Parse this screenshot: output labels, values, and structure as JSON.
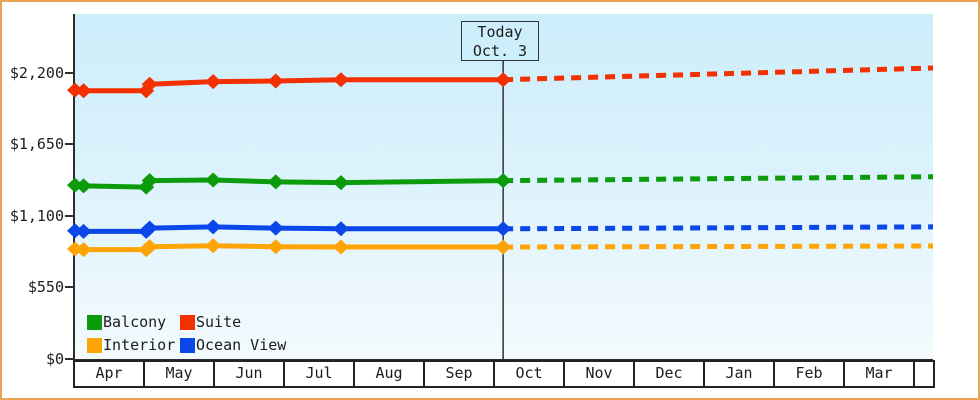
{
  "frame": {
    "border_color": "#e9a556"
  },
  "today_box": {
    "line1": "Today",
    "line2": "Oct. 3"
  },
  "chart_data": {
    "type": "line",
    "title": "",
    "x_axis": {
      "tick_labels": [
        "Apr",
        "May",
        "Jun",
        "Jul",
        "Aug",
        "Sep",
        "Oct",
        "Nov",
        "Dec",
        "Jan",
        "Feb",
        "Mar"
      ]
    },
    "y_axis": {
      "tick_labels": [
        "$0",
        "$550",
        "$1,100",
        "$1,650",
        "$2,200"
      ],
      "tick_values": [
        0,
        550,
        1100,
        1650,
        2200
      ],
      "range": [
        0,
        2650
      ]
    },
    "grid": false,
    "today_marker": {
      "label": [
        "Today",
        "Oct. 3"
      ],
      "x_frac": 0.499
    },
    "legend_position": "bottom-left",
    "legend": [
      {
        "label": "Balcony",
        "color": "#0b9b0b"
      },
      {
        "label": "Suite",
        "color": "#f23000"
      },
      {
        "label": "Interior",
        "color": "#ffa405"
      },
      {
        "label": "Ocean View",
        "color": "#0b46e8"
      }
    ],
    "series": [
      {
        "name": "Interior",
        "color": "#ffa405",
        "solid_points": [
          [
            0,
            845
          ],
          [
            0.01,
            840
          ],
          [
            0.083,
            840
          ],
          [
            0.087,
            862
          ],
          [
            0.161,
            870
          ],
          [
            0.234,
            862
          ],
          [
            0.31,
            860
          ],
          [
            0.499,
            860
          ]
        ],
        "dashed_projection_end_value": 868
      },
      {
        "name": "Ocean View",
        "color": "#0b46e8",
        "solid_points": [
          [
            0,
            985
          ],
          [
            0.01,
            980
          ],
          [
            0.083,
            980
          ],
          [
            0.087,
            1005
          ],
          [
            0.161,
            1015
          ],
          [
            0.234,
            1005
          ],
          [
            0.31,
            1000
          ],
          [
            0.499,
            1000
          ]
        ],
        "dashed_projection_end_value": 1015
      },
      {
        "name": "Balcony",
        "color": "#0b9b0b",
        "solid_points": [
          [
            0,
            1335
          ],
          [
            0.01,
            1330
          ],
          [
            0.083,
            1320
          ],
          [
            0.087,
            1370
          ],
          [
            0.161,
            1375
          ],
          [
            0.234,
            1360
          ],
          [
            0.31,
            1355
          ],
          [
            0.499,
            1370
          ]
        ],
        "dashed_projection_end_value": 1400
      },
      {
        "name": "Suite",
        "color": "#f23000",
        "solid_points": [
          [
            0,
            2065
          ],
          [
            0.01,
            2060
          ],
          [
            0.083,
            2060
          ],
          [
            0.087,
            2110
          ],
          [
            0.161,
            2130
          ],
          [
            0.234,
            2135
          ],
          [
            0.31,
            2145
          ],
          [
            0.499,
            2145
          ]
        ],
        "dashed_projection_end_value": 2235
      }
    ],
    "plot_style": {
      "bg_top": "#cceefb",
      "bg_bottom": "#f2fafd",
      "axis_color": "#2d2d2d"
    }
  }
}
